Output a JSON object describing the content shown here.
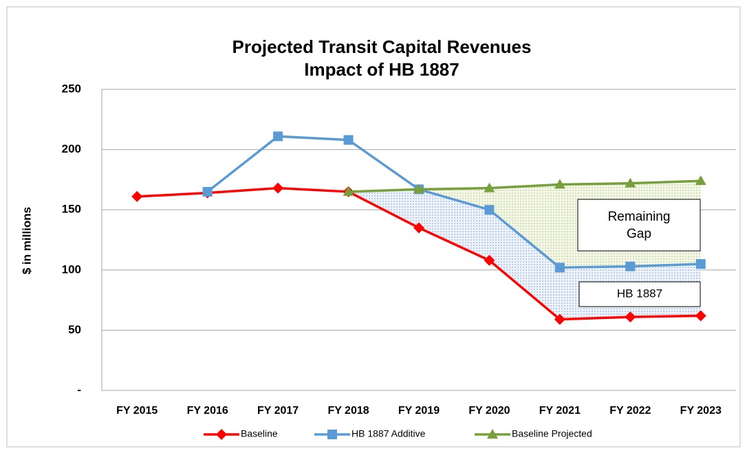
{
  "chart_data": {
    "type": "line",
    "title": "Projected Transit Capital Revenues",
    "subtitle": "Impact of HB 1887",
    "y_label": "$ in millions",
    "categories": [
      "FY 2015",
      "FY 2016",
      "FY 2017",
      "FY 2018",
      "FY 2019",
      "FY 2020",
      "FY 2021",
      "FY 2022",
      "FY 2023"
    ],
    "series": [
      {
        "name": "Baseline",
        "color": "#ff0000",
        "marker": "diamond",
        "values": [
          161,
          164,
          168,
          165,
          135,
          108,
          59,
          61,
          62
        ]
      },
      {
        "name": "HB 1887 Additive",
        "color": "#5b9bd5",
        "marker": "square",
        "values": [
          null,
          165,
          211,
          208,
          167,
          150,
          102,
          103,
          105
        ]
      },
      {
        "name": "Baseline Projected",
        "color": "#77a03c",
        "marker": "triangle",
        "values": [
          null,
          null,
          null,
          165,
          167,
          168,
          171,
          172,
          174
        ]
      }
    ],
    "ylim": [
      0,
      250
    ],
    "yticks": [
      {
        "value": 0,
        "label": "-"
      },
      50,
      100,
      150,
      200,
      250
    ],
    "grid": true,
    "legend": "bottom",
    "annotations": [
      {
        "lines": [
          "Remaining",
          "Gap"
        ]
      },
      {
        "lines": [
          "HB 1887"
        ]
      }
    ]
  }
}
